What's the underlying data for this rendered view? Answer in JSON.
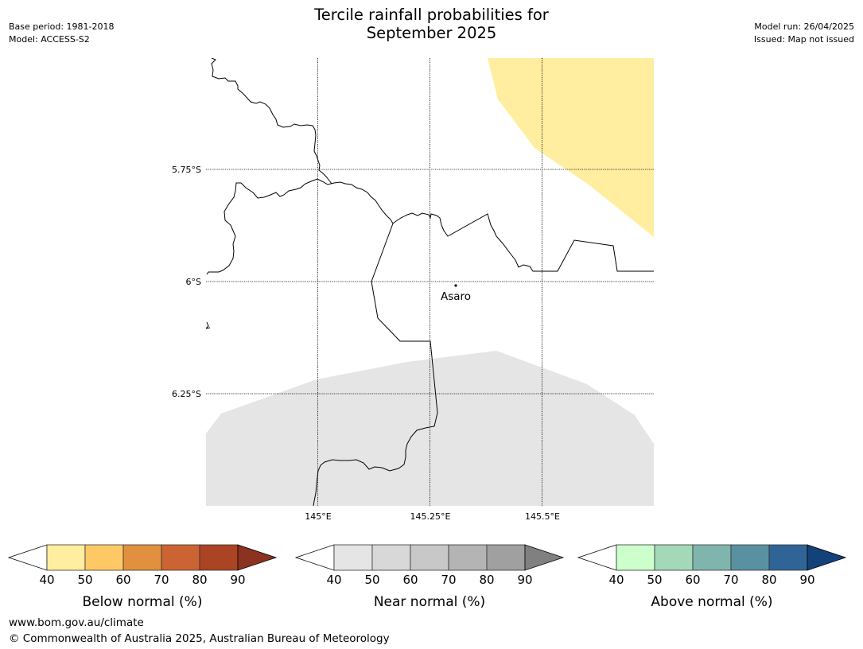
{
  "title_line1": "Tercile rainfall probabilities for",
  "title_line2": "September 2025",
  "base_period": "Base period: 1981-2018",
  "model": "Model: ACCESS-S2",
  "model_run": "Model run: 26/04/2025",
  "issued": "Issued: Map not issued",
  "map": {
    "lat_labels": [
      "5.75°S",
      "6°S",
      "6.25°S"
    ],
    "lon_labels": [
      "145°E",
      "145.25°E",
      "145.5°E"
    ],
    "town": "Asaro"
  },
  "colorbars": [
    {
      "label": "Below normal (%)",
      "ticks": [
        "40",
        "50",
        "60",
        "70",
        "80",
        "90"
      ],
      "colors": [
        "#ffffff",
        "#ffeda0",
        "#fec965",
        "#e0903f",
        "#cb6432",
        "#aa4423",
        "#8b3220"
      ]
    },
    {
      "label": "Near normal (%)",
      "ticks": [
        "40",
        "50",
        "60",
        "70",
        "80",
        "90"
      ],
      "colors": [
        "#ffffff",
        "#e5e5e5",
        "#d8d8d8",
        "#c8c8c8",
        "#b4b4b4",
        "#a0a0a0",
        "#808080"
      ]
    },
    {
      "label": "Above normal (%)",
      "ticks": [
        "40",
        "50",
        "60",
        "70",
        "80",
        "90"
      ],
      "colors": [
        "#ffffff",
        "#ccffcc",
        "#a3d9b8",
        "#7fb5ad",
        "#5a91a0",
        "#306496",
        "#13417a"
      ]
    }
  ],
  "footer": {
    "url": "www.bom.gov.au/climate",
    "copyright": "© Commonwealth of Australia 2025, Australian Bureau of Meteorology"
  }
}
